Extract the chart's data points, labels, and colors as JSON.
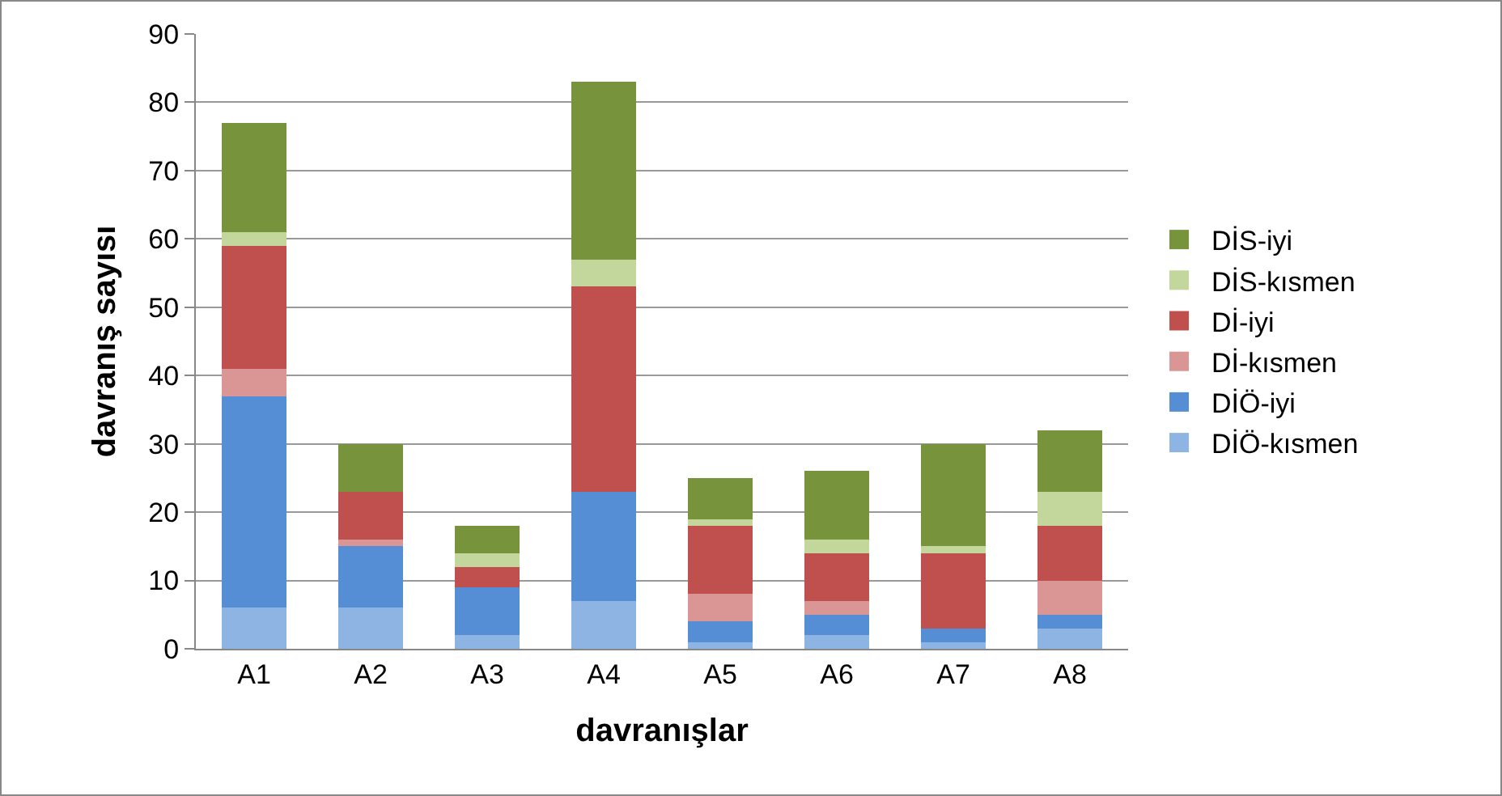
{
  "chart_data": {
    "type": "bar",
    "stacked": true,
    "xlabel": "davranışlar",
    "ylabel": "davranış sayısı",
    "categories": [
      "A1",
      "A2",
      "A3",
      "A4",
      "A5",
      "A6",
      "A7",
      "A8"
    ],
    "series": [
      {
        "name": "DİÖ-kısmen",
        "color": "#8eb4e3",
        "values": [
          6,
          6,
          2,
          7,
          1,
          2,
          1,
          3
        ]
      },
      {
        "name": "DİÖ-iyi",
        "color": "#558ed5",
        "values": [
          31,
          9,
          7,
          16,
          3,
          3,
          2,
          2
        ]
      },
      {
        "name": "Dİ-kısmen",
        "color": "#d99694",
        "values": [
          4,
          1,
          0,
          0,
          4,
          2,
          0,
          5
        ]
      },
      {
        "name": "Dİ-iyi",
        "color": "#c0504d",
        "values": [
          18,
          7,
          3,
          30,
          10,
          7,
          11,
          8
        ]
      },
      {
        "name": "DİS-kısmen",
        "color": "#c3d69b",
        "values": [
          2,
          0,
          2,
          4,
          1,
          2,
          1,
          5
        ]
      },
      {
        "name": "DİS-iyi",
        "color": "#77933c",
        "values": [
          16,
          7,
          4,
          26,
          6,
          10,
          15,
          9
        ]
      }
    ],
    "ylim": [
      0,
      90
    ],
    "yticks": [
      0,
      10,
      20,
      30,
      40,
      50,
      60,
      70,
      80,
      90
    ],
    "grid": "y",
    "legend": "right"
  }
}
